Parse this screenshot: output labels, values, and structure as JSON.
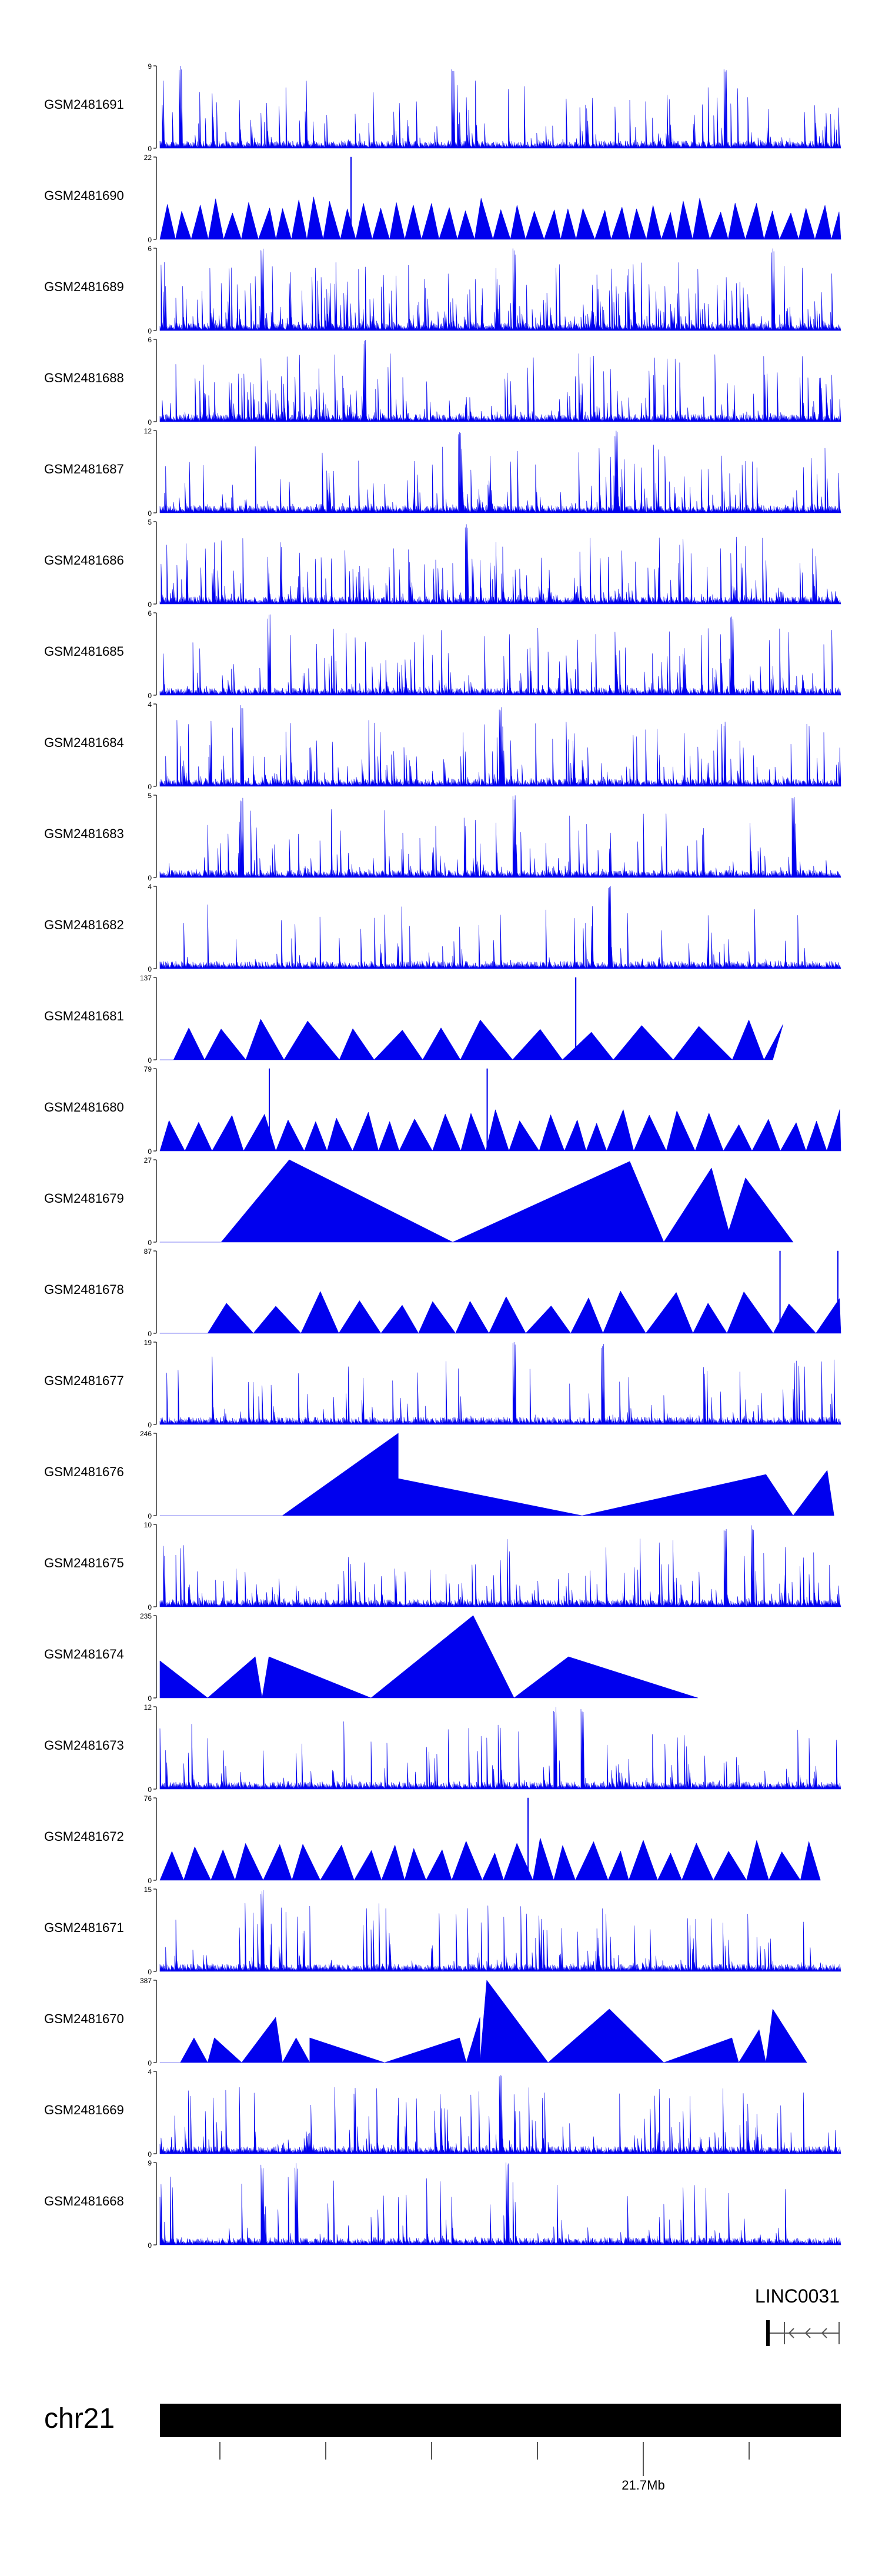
{
  "chart_data": {
    "type": "area",
    "colors": {
      "signal": "#0000ee",
      "axis": "#000000",
      "ideogram": "#000000",
      "gene": "#555555"
    },
    "tracks": [
      {
        "name": "GSM2481691",
        "ymax": 9,
        "style": "dense",
        "seed": 11,
        "density": 0.22,
        "peaks": [
          0.43,
          0.83,
          0.03
        ]
      },
      {
        "name": "GSM2481690",
        "ymax": 22,
        "style": "tri",
        "seed": 12,
        "widths": [
          0.022,
          0.028
        ],
        "peaks": [
          0.28
        ]
      },
      {
        "name": "GSM2481689",
        "ymax": 6,
        "style": "dense",
        "seed": 13,
        "density": 0.45,
        "peaks": [
          0.15,
          0.52,
          0.9
        ]
      },
      {
        "name": "GSM2481688",
        "ymax": 6,
        "style": "dense",
        "seed": 14,
        "density": 0.3,
        "peaks": [
          0.3
        ]
      },
      {
        "name": "GSM2481687",
        "ymax": 12,
        "style": "dense",
        "seed": 15,
        "density": 0.28,
        "peaks": [
          0.44,
          0.67
        ]
      },
      {
        "name": "GSM2481686",
        "ymax": 5,
        "style": "dense",
        "seed": 16,
        "density": 0.35,
        "peaks": [
          0.45
        ]
      },
      {
        "name": "GSM2481685",
        "ymax": 6,
        "style": "dense",
        "seed": 17,
        "density": 0.3,
        "peaks": [
          0.16,
          0.84
        ]
      },
      {
        "name": "GSM2481684",
        "ymax": 4,
        "style": "dense",
        "seed": 18,
        "density": 0.3,
        "peaks": [
          0.12,
          0.5
        ]
      },
      {
        "name": "GSM2481683",
        "ymax": 5,
        "style": "dense",
        "seed": 19,
        "density": 0.2,
        "peaks": [
          0.12,
          0.52,
          0.93
        ]
      },
      {
        "name": "GSM2481682",
        "ymax": 4,
        "style": "dense",
        "seed": 20,
        "density": 0.15,
        "peaks": [
          0.66
        ]
      },
      {
        "name": "GSM2481681",
        "ymax": 137,
        "style": "tri",
        "seed": 21,
        "start": 0.02,
        "end": 0.9,
        "widths": [
          0.04,
          0.09
        ],
        "peaks": [
          0.61
        ]
      },
      {
        "name": "GSM2481680",
        "ymax": 79,
        "style": "tri",
        "seed": 22,
        "widths": [
          0.03,
          0.05
        ],
        "peaks": [
          0.16,
          0.48
        ]
      },
      {
        "name": "GSM2481679",
        "ymax": 27,
        "style": "custom",
        "tris": [
          [
            0.09,
            0.19,
            0.43,
            1.0
          ],
          [
            0.43,
            0.69,
            0.74,
            0.98
          ],
          [
            0.74,
            0.81,
            0.84,
            0.9
          ],
          [
            0.83,
            0.86,
            0.93,
            0.78
          ]
        ]
      },
      {
        "name": "GSM2481678",
        "ymax": 87,
        "style": "tri",
        "seed": 24,
        "start": 0.07,
        "end": 1.0,
        "widths": [
          0.03,
          0.07
        ],
        "peaks": [
          0.91,
          0.995
        ]
      },
      {
        "name": "GSM2481677",
        "ymax": 19,
        "style": "dense",
        "seed": 25,
        "density": 0.15,
        "peaks": [
          0.52,
          0.65
        ]
      },
      {
        "name": "GSM2481676",
        "ymax": 246,
        "style": "custom",
        "tris": [
          [
            0.18,
            0.35,
            0.35,
            1.0
          ],
          [
            0.35,
            0.35,
            0.62,
            0.45
          ],
          [
            0.62,
            0.89,
            0.93,
            0.5
          ],
          [
            0.93,
            0.98,
            0.99,
            0.55
          ]
        ]
      },
      {
        "name": "GSM2481675",
        "ymax": 10,
        "style": "dense",
        "seed": 27,
        "density": 0.25,
        "peaks": [
          0.83,
          0.87
        ]
      },
      {
        "name": "GSM2481674",
        "ymax": 235,
        "style": "custom",
        "tris": [
          [
            0.0,
            0.0,
            0.07,
            0.45
          ],
          [
            0.07,
            0.14,
            0.15,
            0.5
          ],
          [
            0.15,
            0.16,
            0.31,
            0.5
          ],
          [
            0.31,
            0.46,
            0.52,
            1.0
          ],
          [
            0.52,
            0.6,
            0.79,
            0.5
          ]
        ]
      },
      {
        "name": "GSM2481673",
        "ymax": 12,
        "style": "dense",
        "seed": 29,
        "density": 0.18,
        "peaks": [
          0.58,
          0.62
        ]
      },
      {
        "name": "GSM2481672",
        "ymax": 76,
        "style": "tri",
        "seed": 30,
        "start": 0.0,
        "end": 0.97,
        "widths": [
          0.03,
          0.05
        ],
        "peaks": [
          0.54
        ]
      },
      {
        "name": "GSM2481671",
        "ymax": 15,
        "style": "dense",
        "seed": 31,
        "density": 0.25,
        "peaks": [
          0.15
        ]
      },
      {
        "name": "GSM2481670",
        "ymax": 387,
        "style": "custom",
        "tris": [
          [
            0.03,
            0.05,
            0.07,
            0.3
          ],
          [
            0.07,
            0.08,
            0.12,
            0.3
          ],
          [
            0.12,
            0.17,
            0.18,
            0.55
          ],
          [
            0.18,
            0.2,
            0.22,
            0.3
          ],
          [
            0.22,
            0.22,
            0.33,
            0.3
          ],
          [
            0.33,
            0.44,
            0.45,
            0.3
          ],
          [
            0.45,
            0.47,
            0.47,
            0.55
          ],
          [
            0.47,
            0.48,
            0.57,
            1.0
          ],
          [
            0.57,
            0.66,
            0.74,
            0.65
          ],
          [
            0.74,
            0.84,
            0.85,
            0.3
          ],
          [
            0.85,
            0.88,
            0.89,
            0.4
          ],
          [
            0.89,
            0.9,
            0.95,
            0.65
          ]
        ]
      },
      {
        "name": "GSM2481669",
        "ymax": 4,
        "style": "dense",
        "seed": 33,
        "density": 0.25,
        "peaks": [
          0.5
        ]
      },
      {
        "name": "GSM2481668",
        "ymax": 9,
        "style": "dense",
        "seed": 34,
        "density": 0.12,
        "peaks": [
          0.15,
          0.2,
          0.51
        ]
      }
    ],
    "gene": {
      "label": "LINC0031",
      "strand": "-"
    },
    "chromosome": {
      "name": "chr21"
    },
    "position_label": "21.7Mb"
  }
}
